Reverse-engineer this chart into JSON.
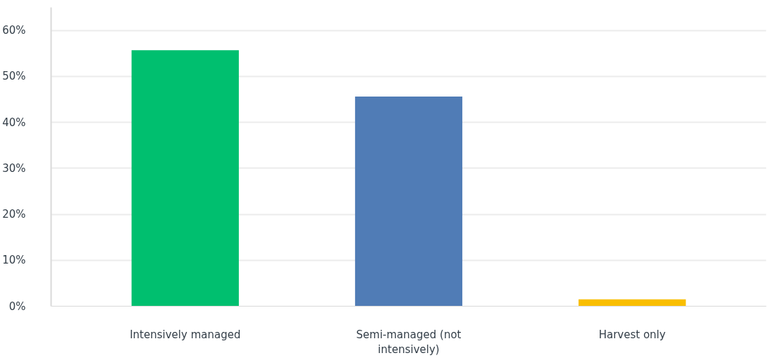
{
  "chart_data": {
    "type": "bar",
    "categories": [
      "Intensively managed",
      "Semi-managed (not intensively)",
      "Harvest only"
    ],
    "values": [
      55.7,
      45.6,
      1.5
    ],
    "colors": [
      "#00bf6f",
      "#507cb6",
      "#f9be00"
    ],
    "ylim": [
      0,
      65
    ],
    "yticks": [
      {
        "value": 0,
        "label": "0%"
      },
      {
        "value": 10,
        "label": "10%"
      },
      {
        "value": 20,
        "label": "20%"
      },
      {
        "value": 30,
        "label": "30%"
      },
      {
        "value": 40,
        "label": "40%"
      },
      {
        "value": 50,
        "label": "50%"
      },
      {
        "value": 60,
        "label": "60%"
      }
    ],
    "grid": "y"
  }
}
